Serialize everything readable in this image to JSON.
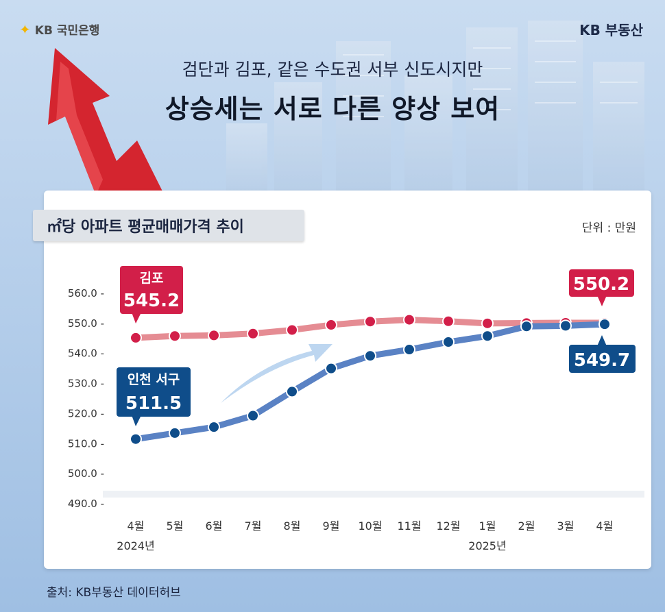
{
  "header": {
    "bank_logo": "KB 국민은행",
    "brand_logo": "KB 부동산",
    "subtitle": "검단과 김포, 같은 수도권 서부 신도시지만",
    "title": "상승세는 서로 다른 양상 보여"
  },
  "colors": {
    "gimpo_line": "#e58c93",
    "gimpo_marker": "#d21f49",
    "incheon_line": "#5a82c4",
    "incheon_marker": "#0f4d8a",
    "accent_arrow": "#d4252f"
  },
  "chart_data": {
    "type": "line",
    "title": "㎡당 아파트 평균매매가격 추이",
    "unit_label": "단위 : 만원",
    "categories": [
      "4월",
      "5월",
      "6월",
      "7월",
      "8월",
      "9월",
      "10월",
      "11월",
      "12월",
      "1월",
      "2월",
      "3월",
      "4월"
    ],
    "year_labels": [
      {
        "at_index": 0,
        "label": "2024년"
      },
      {
        "at_index": 9,
        "label": "2025년"
      }
    ],
    "yticks": [
      "560.0 -",
      "550.0 -",
      "540.0 -",
      "530.0 -",
      "520.0 -",
      "510.0 -",
      "500.0 -",
      "490.0 -"
    ],
    "ylim": [
      490,
      560
    ],
    "series": [
      {
        "name": "김포",
        "values": [
          545.2,
          545.8,
          546.0,
          546.6,
          547.8,
          549.5,
          550.6,
          551.2,
          550.7,
          550.0,
          550.1,
          550.2,
          550.2
        ],
        "start_label": "545.2",
        "end_label": "550.2"
      },
      {
        "name": "인천 서구",
        "values": [
          511.5,
          513.5,
          515.5,
          519.3,
          527.3,
          535.0,
          539.2,
          541.3,
          543.8,
          545.8,
          549.0,
          549.2,
          549.7
        ],
        "start_label": "511.5",
        "end_label": "549.7"
      }
    ]
  },
  "footer": {
    "source": "출처: KB부동산 데이터허브"
  }
}
